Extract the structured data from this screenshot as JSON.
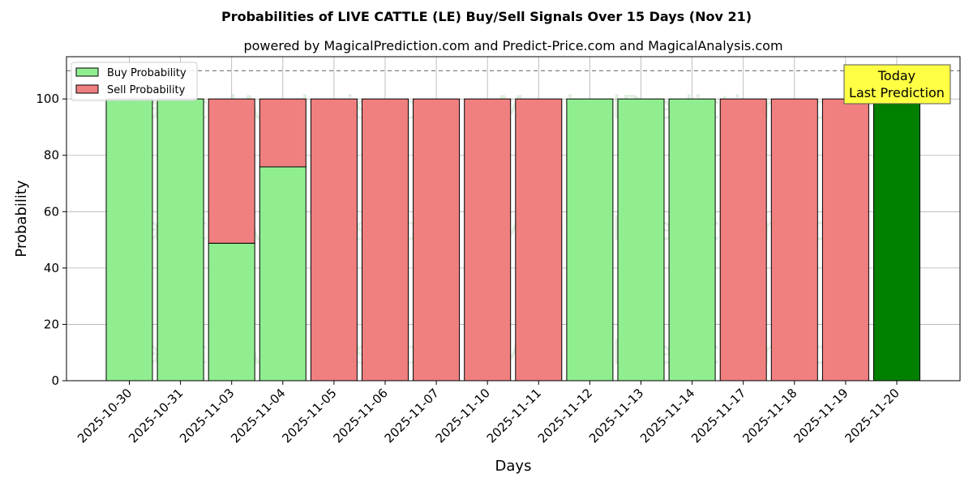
{
  "chart_data": {
    "type": "bar",
    "stacked": true,
    "title": "Probabilities of LIVE CATTLE (LE) Buy/Sell Signals Over 15 Days (Nov 21)",
    "subtitle": "powered by MagicalPrediction.com and Predict-Price.com and MagicalAnalysis.com",
    "xlabel": "Days",
    "ylabel": "Probability",
    "ylim": [
      0,
      115
    ],
    "yticks": [
      0,
      20,
      40,
      60,
      80,
      100
    ],
    "grid": true,
    "legend_position": "top-left",
    "reference_line": {
      "y": 110,
      "style": "dashed",
      "color": "#808080"
    },
    "categories": [
      "2025-10-30",
      "2025-10-31",
      "2025-11-03",
      "2025-11-04",
      "2025-11-05",
      "2025-11-06",
      "2025-11-07",
      "2025-11-10",
      "2025-11-11",
      "2025-11-12",
      "2025-11-13",
      "2025-11-14",
      "2025-11-17",
      "2025-11-18",
      "2025-11-19",
      "2025-11-20"
    ],
    "series": [
      {
        "name": "Buy Probability",
        "color": "#90ee90",
        "values": [
          100,
          100,
          48.8,
          75.9,
          0,
          0,
          0,
          0,
          0,
          100,
          100,
          100,
          0,
          0,
          0,
          100
        ]
      },
      {
        "name": "Sell Probability",
        "color": "#f08080",
        "values": [
          0,
          0,
          51.2,
          24.1,
          100,
          100,
          100,
          100,
          100,
          0,
          0,
          0,
          100,
          100,
          100,
          0
        ]
      }
    ],
    "highlight": {
      "category": "2025-11-20",
      "color": "#008000"
    },
    "annotation": {
      "lines": [
        "Today",
        "Last Prediction"
      ],
      "background": "#ffff44"
    },
    "watermarks": [
      "MagicalAnalysis.com",
      "MagicalPrediction.com"
    ]
  }
}
